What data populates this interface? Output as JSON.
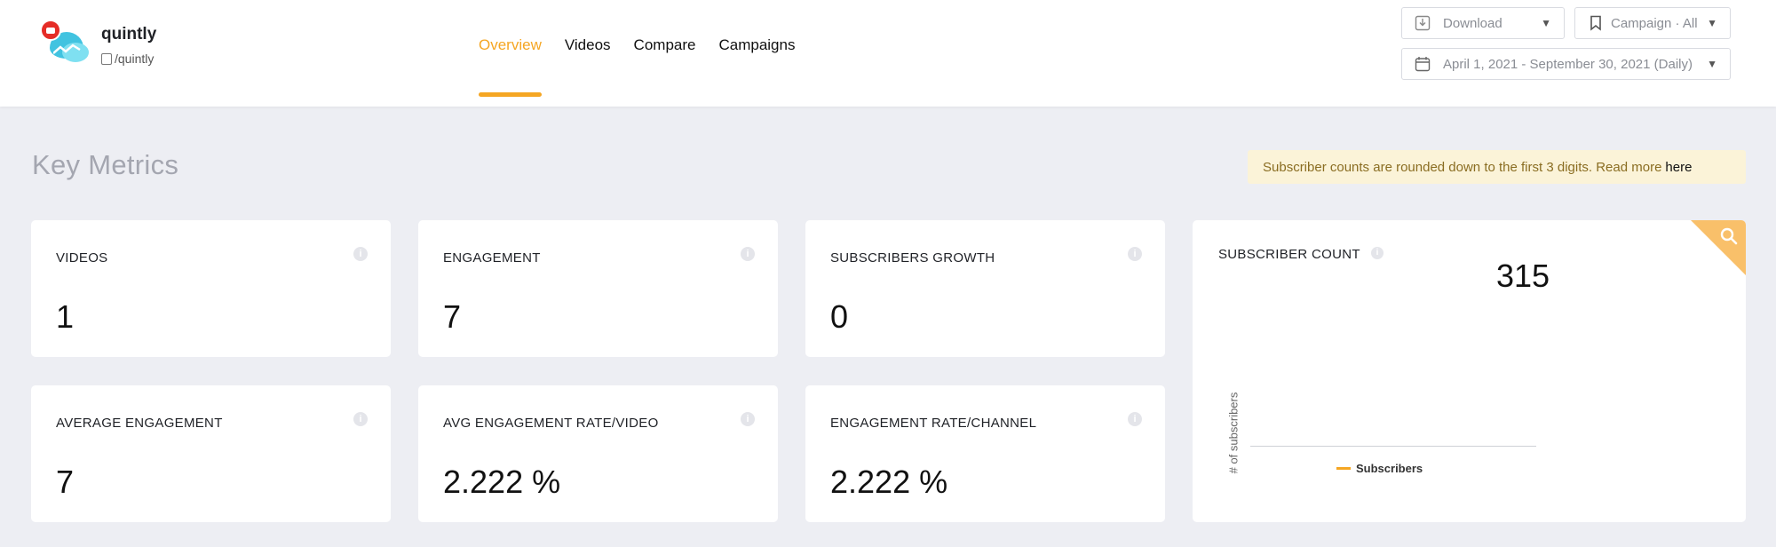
{
  "account": {
    "name": "quintly",
    "handle": "/quintly"
  },
  "nav": {
    "tabs": [
      {
        "label": "Overview",
        "active": true
      },
      {
        "label": "Videos",
        "active": false
      },
      {
        "label": "Compare",
        "active": false
      },
      {
        "label": "Campaigns",
        "active": false
      }
    ]
  },
  "controls": {
    "download_label": "Download",
    "campaign_label": "Campaign · All",
    "date_range": "April 1, 2021 - September 30, 2021 (Daily)"
  },
  "section": {
    "title": "Key Metrics",
    "notice_text": "Subscriber counts are rounded down to the first 3 digits. Read more",
    "notice_link": "here"
  },
  "metrics": [
    {
      "label": "VIDEOS",
      "value": "1"
    },
    {
      "label": "ENGAGEMENT",
      "value": "7"
    },
    {
      "label": "SUBSCRIBERS GROWTH",
      "value": "0"
    },
    {
      "label": "AVERAGE ENGAGEMENT",
      "value": "7"
    },
    {
      "label": "AVG ENGAGEMENT RATE/VIDEO",
      "value": "2.222 %"
    },
    {
      "label": "ENGAGEMENT RATE/CHANNEL",
      "value": "2.222 %"
    }
  ],
  "subscriber_card": {
    "label": "SUBSCRIBER COUNT",
    "value": "315",
    "ylabel": "# of subscribers",
    "legend": "Subscribers"
  },
  "info_glyph": "i",
  "colors": {
    "accent": "#f5a623",
    "notice_bg": "#fbf3d8",
    "youtube_red": "#e52d27"
  }
}
